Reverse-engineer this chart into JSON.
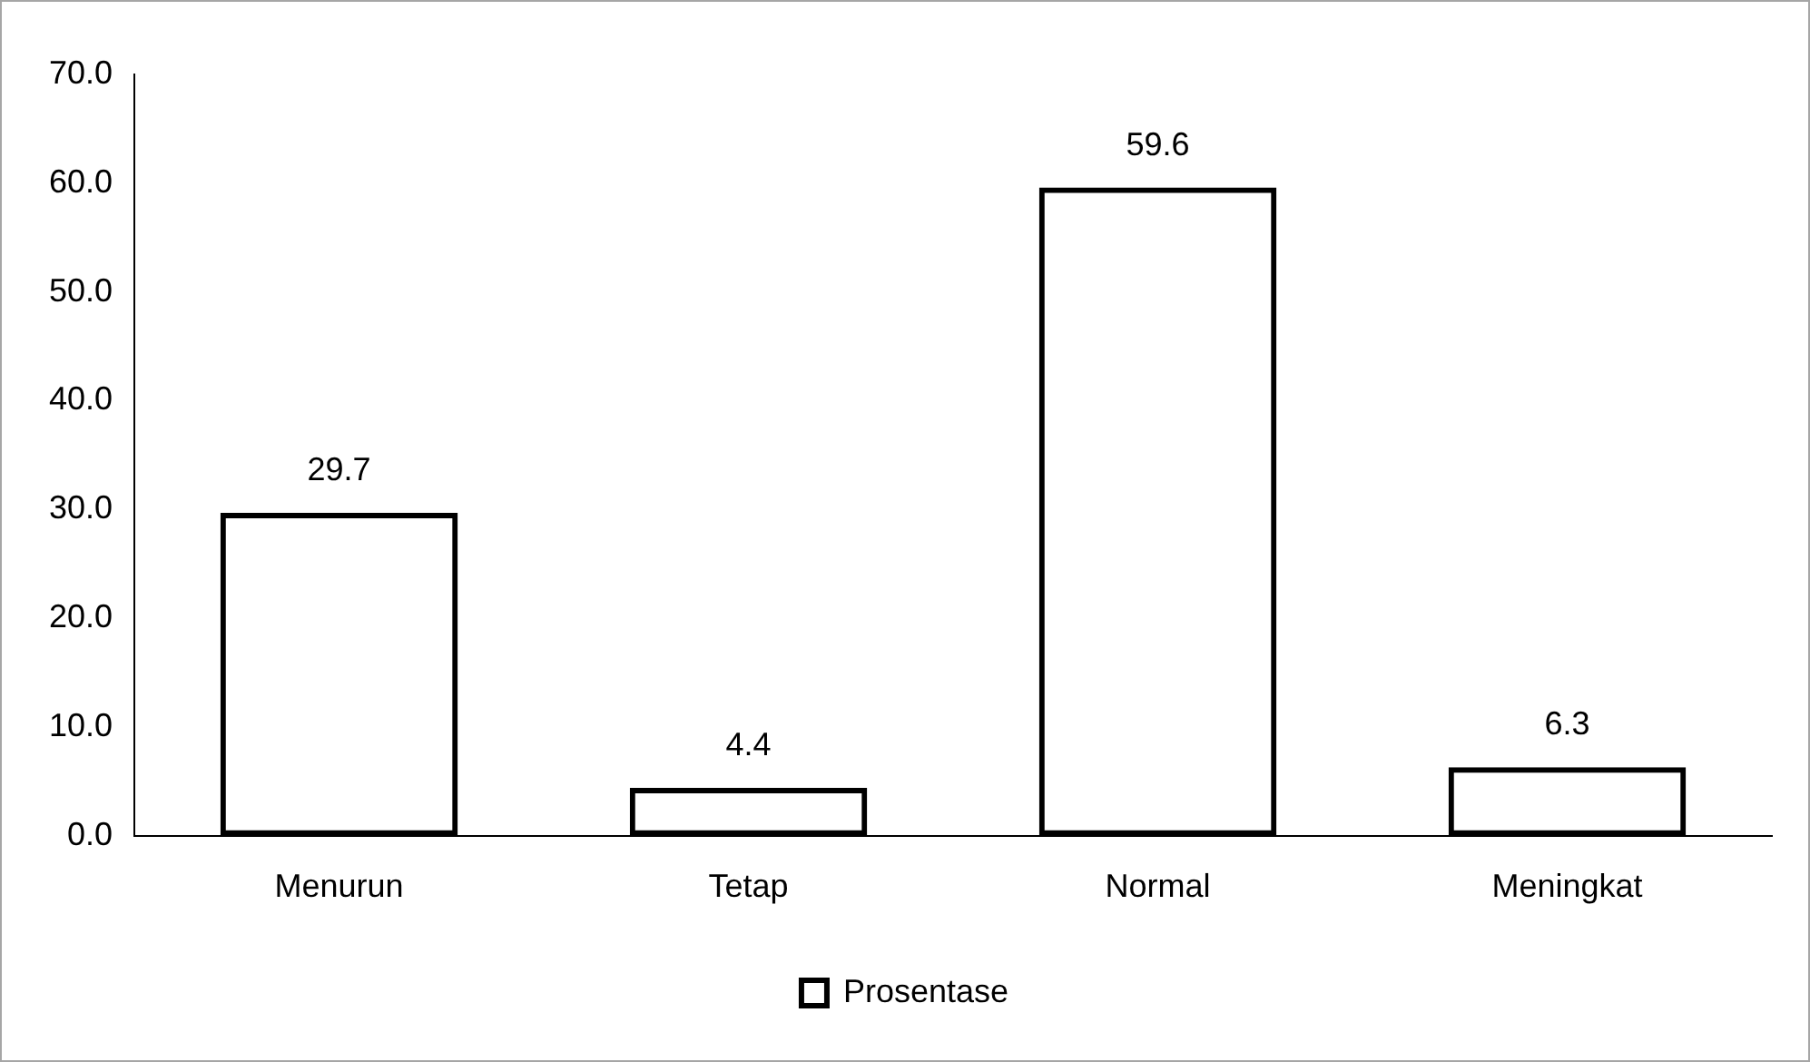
{
  "chart_data": {
    "type": "bar",
    "categories": [
      "Menurun",
      "Tetap",
      "Normal",
      "Meningkat"
    ],
    "series": [
      {
        "name": "Prosentase",
        "color": "#000000",
        "values": [
          29.7,
          4.4,
          59.6,
          6.3
        ]
      }
    ],
    "ylim": [
      0,
      70
    ],
    "yticks": [
      {
        "value": 0,
        "label": "0.0"
      },
      {
        "value": 10,
        "label": "10.0"
      },
      {
        "value": 20,
        "label": "20.0"
      },
      {
        "value": 30,
        "label": "30.0"
      },
      {
        "value": 40,
        "label": "40.0"
      },
      {
        "value": 50,
        "label": "50.0"
      },
      {
        "value": 60,
        "label": "60.0"
      },
      {
        "value": 70,
        "label": "70.0"
      }
    ],
    "grid": false,
    "legend": "bottom",
    "data_labels": true
  }
}
